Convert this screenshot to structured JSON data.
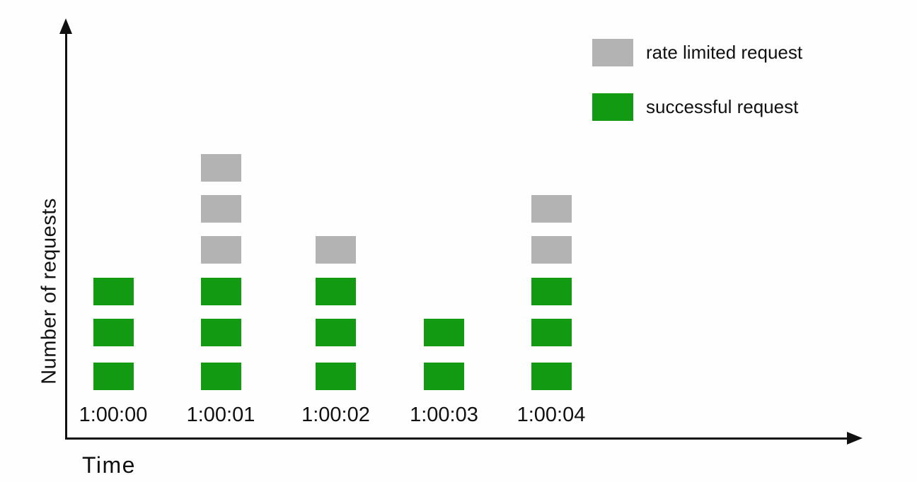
{
  "colors": {
    "successful": "#129b12",
    "rate_limited": "#b3b3b3",
    "axis": "#111111",
    "text": "#111111",
    "bg": "#fefefe"
  },
  "legend": {
    "position": "top-right",
    "items": [
      {
        "label": "rate limited request",
        "type": "rate_limited"
      },
      {
        "label": "successful request",
        "type": "successful"
      }
    ]
  },
  "chart_data": {
    "type": "bar",
    "variant": "stacked-unit-blocks",
    "xlabel": "Time",
    "ylabel": "Number of requests",
    "categories": [
      "1:00:00",
      "1:00:01",
      "1:00:02",
      "1:00:03",
      "1:00:04"
    ],
    "series": [
      {
        "name": "successful request",
        "color_key": "successful",
        "values": [
          3,
          3,
          3,
          2,
          3
        ]
      },
      {
        "name": "rate limited request",
        "color_key": "rate_limited",
        "values": [
          0,
          3,
          1,
          0,
          2
        ]
      }
    ],
    "grid": false,
    "axis_arrows": true,
    "legend_position": "top-right"
  }
}
